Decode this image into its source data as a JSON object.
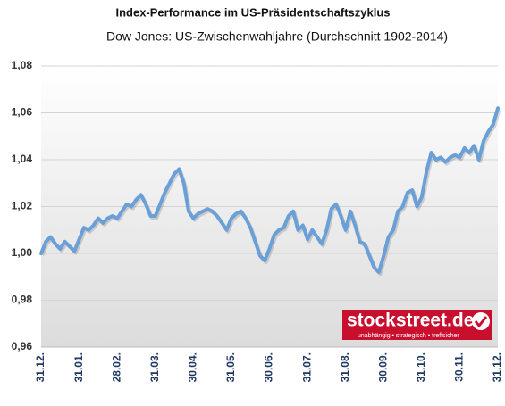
{
  "chart_data": {
    "type": "line",
    "title": "Index-Performance im US-Präsidentschaftszyklus",
    "subtitle": "Dow Jones: US-Zwischenwahljahre (Durchschnitt 1902-2014)",
    "brand": "stockstreet.de",
    "brand_tagline": "unabhängig • strategisch • treffsicher",
    "categories": [
      "31.12.",
      null,
      null,
      null,
      null,
      null,
      null,
      null,
      "31.01.",
      null,
      null,
      null,
      null,
      null,
      null,
      null,
      "28.02.",
      null,
      null,
      null,
      null,
      null,
      null,
      null,
      "31.03.",
      null,
      null,
      null,
      null,
      null,
      null,
      null,
      "30.04.",
      null,
      null,
      null,
      null,
      null,
      null,
      null,
      "31.05.",
      null,
      null,
      null,
      null,
      null,
      null,
      null,
      "30.06.",
      null,
      null,
      null,
      null,
      null,
      null,
      null,
      "31.07.",
      null,
      null,
      null,
      null,
      null,
      null,
      null,
      "31.08.",
      null,
      null,
      null,
      null,
      null,
      null,
      null,
      "30.09.",
      null,
      null,
      null,
      null,
      null,
      null,
      null,
      "31.10.",
      null,
      null,
      null,
      null,
      null,
      null,
      null,
      "30.11.",
      null,
      null,
      null,
      null,
      null,
      null,
      null,
      "31.12."
    ],
    "values": [
      1.0,
      1.005,
      1.007,
      1.004,
      1.002,
      1.005,
      1.003,
      1.001,
      1.006,
      1.011,
      1.01,
      1.012,
      1.015,
      1.013,
      1.015,
      1.016,
      1.015,
      1.018,
      1.021,
      1.02,
      1.023,
      1.025,
      1.021,
      1.016,
      1.016,
      1.021,
      1.026,
      1.03,
      1.034,
      1.036,
      1.03,
      1.018,
      1.015,
      1.017,
      1.018,
      1.019,
      1.018,
      1.016,
      1.013,
      1.01,
      1.015,
      1.017,
      1.018,
      1.015,
      1.011,
      1.005,
      0.999,
      0.997,
      1.002,
      1.008,
      1.01,
      1.011,
      1.016,
      1.018,
      1.01,
      1.012,
      1.006,
      1.01,
      1.007,
      1.004,
      1.01,
      1.019,
      1.021,
      1.016,
      1.01,
      1.018,
      1.012,
      1.005,
      1.004,
      0.999,
      0.994,
      0.992,
      0.999,
      1.007,
      1.01,
      1.018,
      1.02,
      1.026,
      1.027,
      1.02,
      1.024,
      1.035,
      1.043,
      1.04,
      1.041,
      1.039,
      1.041,
      1.042,
      1.041,
      1.045,
      1.043,
      1.046,
      1.04,
      1.048,
      1.052,
      1.055,
      1.062
    ],
    "color": "#6a9fd8",
    "ylim": [
      0.96,
      1.08
    ],
    "yticks": [
      {
        "value": 0.96,
        "label": "0,96"
      },
      {
        "value": 0.98,
        "label": "0,98"
      },
      {
        "value": 1.0,
        "label": "1,00"
      },
      {
        "value": 1.02,
        "label": "1,02"
      },
      {
        "value": 1.04,
        "label": "1,04"
      },
      {
        "value": 1.06,
        "label": "1,06"
      },
      {
        "value": 1.08,
        "label": "1,08"
      }
    ],
    "grid": true
  }
}
